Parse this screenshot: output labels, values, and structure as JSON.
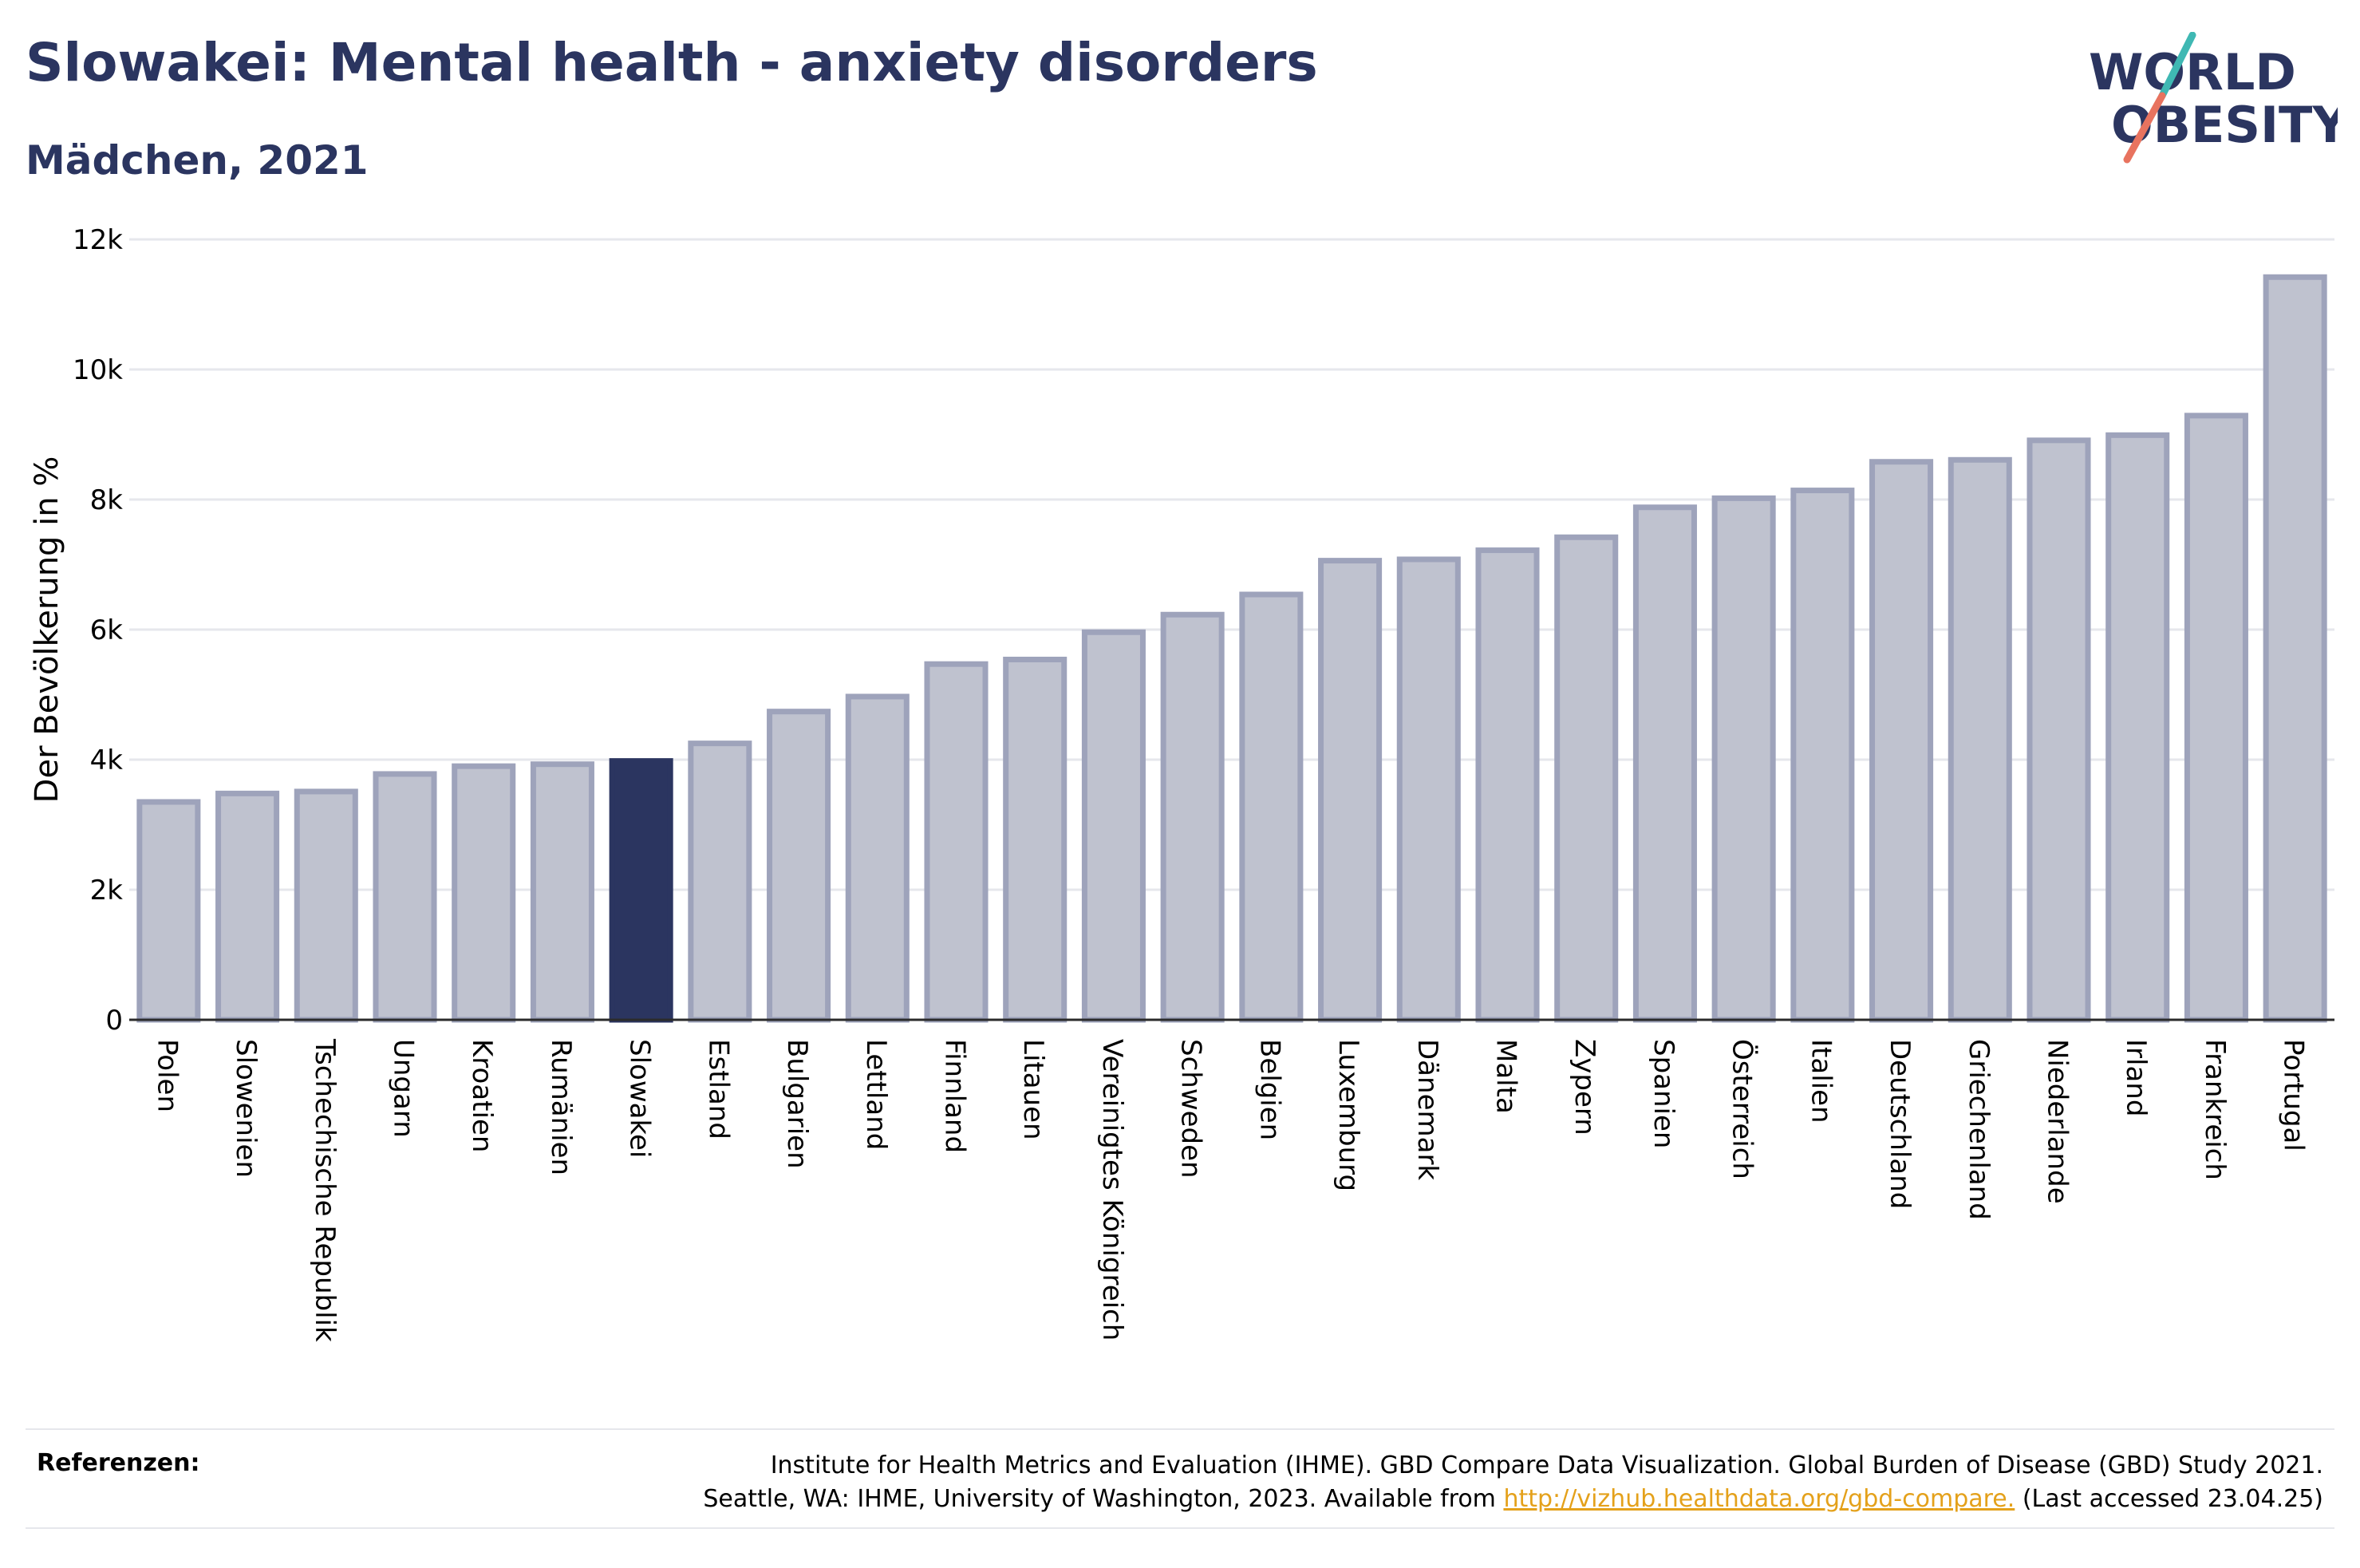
{
  "header": {
    "title": "Slowakei: Mental health - anxiety disorders",
    "subtitle": "Mädchen, 2021"
  },
  "logo": {
    "line1": "WORLD",
    "line2": "OBESITY"
  },
  "colors": {
    "bar": "#bfc2cf",
    "bar_border": "#9ea3bb",
    "highlight": "#2b3560",
    "grid": "#e6e7ec",
    "text": "#2b3560"
  },
  "chart_data": {
    "type": "bar",
    "title": "Slowakei: Mental health - anxiety disorders",
    "subtitle": "Mädchen, 2021",
    "ylabel": "Der Bevölkerung in %",
    "xlabel": "",
    "ylim": [
      0,
      12000
    ],
    "yticks": [
      0,
      2000,
      4000,
      6000,
      8000,
      10000,
      12000
    ],
    "ytick_labels": [
      "0",
      "2k",
      "4k",
      "6k",
      "8k",
      "10k",
      "12k"
    ],
    "grid": true,
    "highlight": "Slowakei",
    "categories": [
      "Polen",
      "Slowenien",
      "Tschechische Republik",
      "Ungarn",
      "Kroatien",
      "Rumänien",
      "Slowakei",
      "Estland",
      "Bulgarien",
      "Lettland",
      "Finnland",
      "Litauen",
      "Vereinigtes Königreich",
      "Schweden",
      "Belgien",
      "Luxemburg",
      "Dänemark",
      "Malta",
      "Zypern",
      "Spanien",
      "Österreich",
      "Italien",
      "Deutschland",
      "Griechenland",
      "Niederlande",
      "Irland",
      "Frankreich",
      "Portugal"
    ],
    "values": [
      3350,
      3480,
      3510,
      3780,
      3900,
      3930,
      3980,
      4250,
      4740,
      4970,
      5470,
      5540,
      5960,
      6230,
      6540,
      7060,
      7080,
      7220,
      7420,
      7880,
      8020,
      8140,
      8580,
      8610,
      8910,
      8990,
      9290,
      11420
    ]
  },
  "references": {
    "label": "Referenzen:",
    "line1": "Institute for Health Metrics and Evaluation (IHME). GBD Compare Data Visualization. Global Burden of Disease (GBD) Study 2021.",
    "line2_pre": "Seattle, WA: IHME, University of Washington, 2023. Available from ",
    "link": "http://vizhub.healthdata.org/gbd-compare.",
    "line2_post": " (Last accessed 23.04.25)"
  }
}
